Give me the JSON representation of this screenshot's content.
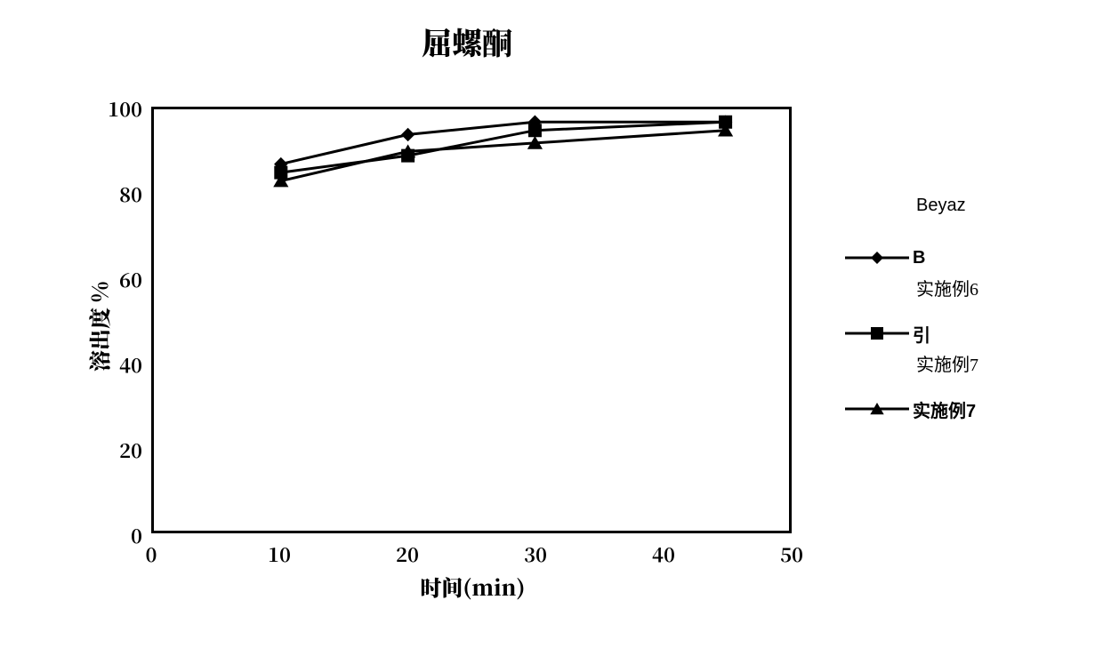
{
  "title": "屈螺酮",
  "title_fontsize": 34,
  "xlabel": "时间(min)",
  "ylabel": "溶出度 %",
  "axis_label_fontsize": 24,
  "tick_fontsize": 22,
  "background_color": "#ffffff",
  "border_color": "#000000",
  "border_width": 3,
  "line_color": "#000000",
  "line_width": 3,
  "marker_size": 7,
  "xlim": [
    0,
    50
  ],
  "ylim": [
    0,
    100
  ],
  "xticks": [
    0,
    10,
    20,
    30,
    40,
    50
  ],
  "yticks": [
    0,
    20,
    40,
    60,
    80,
    100
  ],
  "ytick_step": 20,
  "xtick_step": 10,
  "series": [
    {
      "key": "B",
      "marker": "diamond",
      "x": [
        10,
        20,
        30,
        45
      ],
      "y": [
        87,
        94,
        97,
        97
      ]
    },
    {
      "key": "ex6",
      "marker": "square",
      "x": [
        10,
        20,
        30,
        45
      ],
      "y": [
        85,
        89,
        95,
        97
      ]
    },
    {
      "key": "ex7",
      "marker": "triangle",
      "x": [
        10,
        20,
        30,
        45
      ],
      "y": [
        83,
        90,
        92,
        95
      ]
    }
  ],
  "legend": {
    "top_label": "Beyaz",
    "items": [
      {
        "marker": "diamond",
        "label": "B",
        "sublabel": "实施例6"
      },
      {
        "marker": "square",
        "label": "引",
        "sublabel": "实施例7"
      },
      {
        "marker": "triangle",
        "label": "实施例7",
        "sublabel": ""
      }
    ]
  }
}
